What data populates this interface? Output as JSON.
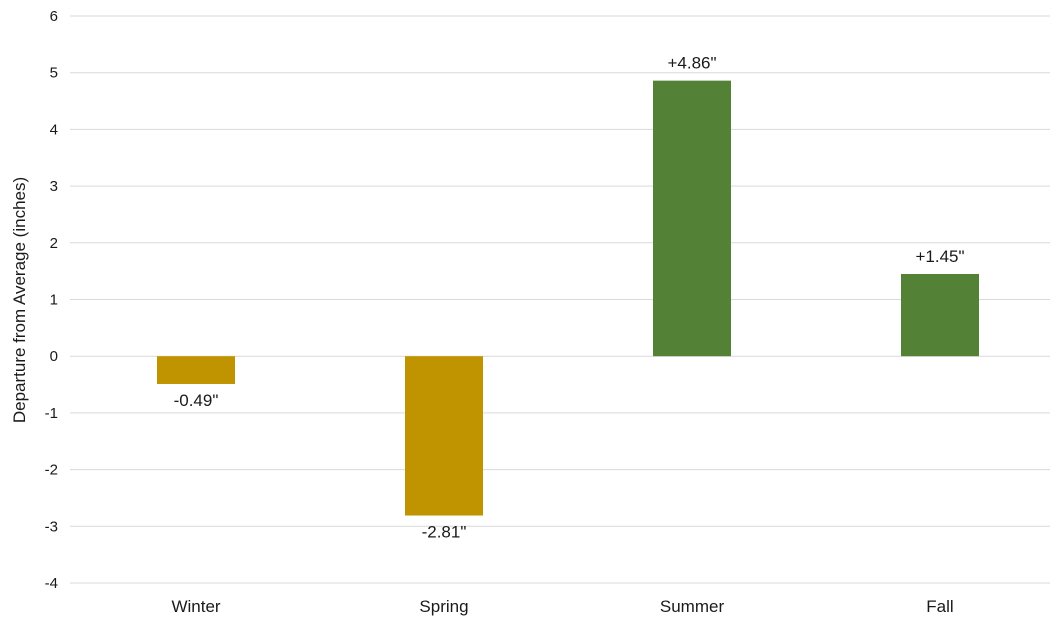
{
  "chart_data": {
    "type": "bar",
    "title": "",
    "xlabel": "",
    "ylabel": "Departure from Average (inches)",
    "ylim": [
      -4,
      6
    ],
    "yticks": [
      6,
      5,
      4,
      3,
      2,
      1,
      0,
      -1,
      -2,
      -3,
      -4
    ],
    "grid": true,
    "legend": "none",
    "categories": [
      "Winter",
      "Spring",
      "Summer",
      "Fall"
    ],
    "values": [
      -0.49,
      -2.81,
      4.86,
      1.45
    ],
    "data_labels": [
      "-0.49\"",
      "-2.81\"",
      "+4.86\"",
      "+1.45\""
    ],
    "colors": {
      "negative": "#c09400",
      "positive": "#538135",
      "gridline": "#d9d9d9"
    }
  }
}
